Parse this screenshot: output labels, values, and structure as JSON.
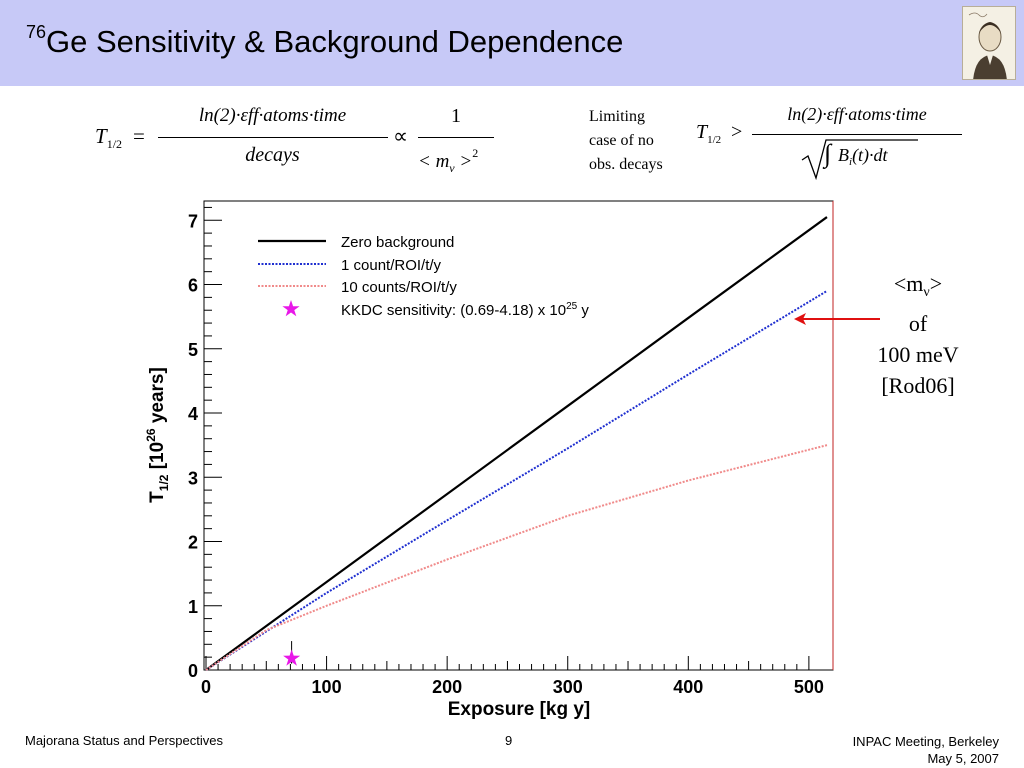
{
  "slide": {
    "title_sup": "76",
    "title_text": "Ge Sensitivity & Background Dependence",
    "limiting_note": [
      "Limiting",
      "case of no",
      "obs. decays"
    ],
    "mass_label_main": "<m",
    "mass_label_sub": "ν",
    "mass_label_close": ">",
    "mass_lines": [
      "of",
      "100 meV",
      "[Rod06]"
    ]
  },
  "formula_left": {
    "lhs": "T",
    "lhs_sub": "1/2",
    "eq": "=",
    "numerator": "ln(2)·εff·atoms·time",
    "denominator": "decays",
    "prop": "∝",
    "num2": "1",
    "den2_open": "< m",
    "den2_sub": "ν",
    "den2_close": " >",
    "den2_exp": "2"
  },
  "formula_right": {
    "lhs": "T",
    "lhs_sub": "1/2",
    "gt": ">",
    "numerator": "ln(2)·εff·atoms·time",
    "den_integral": "∫",
    "den_B": "B",
    "den_B_sub": "i",
    "den_rest": "(t)·dt"
  },
  "footer": {
    "left": "Majorana  Status and Perspectives",
    "page": "9",
    "right_line1": "INPAC Meeting, Berkeley",
    "right_line2": "May 5, 2007"
  },
  "chart_data": {
    "type": "line",
    "xlabel": "Exposure [kg y]",
    "ylabel_parts": [
      "T",
      "1/2",
      " [10",
      "26",
      " years]"
    ],
    "xlim": [
      0,
      520
    ],
    "ylim": [
      0,
      7.3
    ],
    "xticks": [
      "0",
      "100",
      "200",
      "300",
      "400",
      "500"
    ],
    "yticks": [
      "0",
      "1",
      "2",
      "3",
      "4",
      "5",
      "6",
      "7"
    ],
    "series": [
      {
        "name": "Zero background",
        "color": "#000000",
        "style": "solid",
        "x": [
          0,
          100,
          200,
          300,
          400,
          515
        ],
        "y": [
          0,
          1.37,
          2.74,
          4.11,
          5.48,
          7.05
        ]
      },
      {
        "name": "1 count/ROI/t/y",
        "color": "#1f2fd0",
        "style": "dotted",
        "x": [
          0,
          100,
          200,
          300,
          400,
          515
        ],
        "y": [
          0,
          1.2,
          2.33,
          3.45,
          4.6,
          5.9
        ]
      },
      {
        "name": "10 counts/ROI/t/y",
        "color": "#f08a8a",
        "style": "dotted",
        "x": [
          0,
          50,
          100,
          200,
          300,
          400,
          515
        ],
        "y": [
          0,
          0.62,
          1.0,
          1.72,
          2.4,
          2.95,
          3.5
        ]
      }
    ],
    "marker": {
      "name": "KKDC sensitivity: (0.69-4.18) x 10",
      "name_exp": "25",
      "name_unit": " y",
      "color": "#e818e8",
      "x": 71,
      "y": 0.18,
      "bar_low": 0.1,
      "bar_high": 0.45
    },
    "legend_position": "top-left",
    "grid": false
  }
}
